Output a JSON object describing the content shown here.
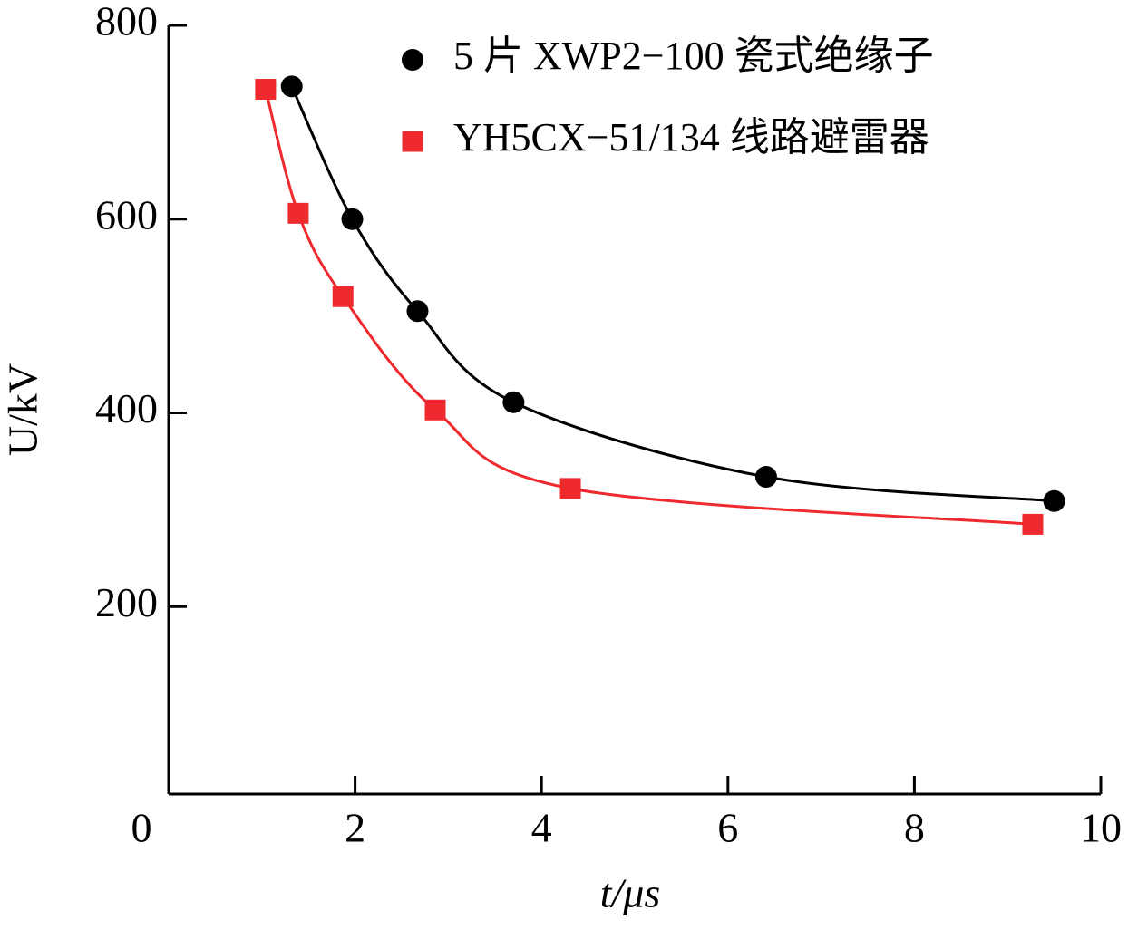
{
  "chart_data": {
    "type": "line",
    "xlabel": "t/μs",
    "ylabel": "U/kV",
    "xlim": [
      0,
      10
    ],
    "xticks": [
      0,
      2,
      4,
      6,
      8,
      10
    ],
    "ylim": [
      0,
      800
    ],
    "yticks": [
      200,
      400,
      600,
      800
    ],
    "legend": "upper right",
    "series": [
      {
        "name": "5 片 XWP2−100 瓷式绝缘子",
        "color": "#000000",
        "marker": "circle",
        "x": [
          1.32,
          1.97,
          2.67,
          3.7,
          6.41,
          9.5
        ],
        "values": [
          737,
          600,
          505,
          411,
          334,
          309
        ]
      },
      {
        "name": "YH5CX−51/134 线路避雷器",
        "color": "#ee2a2e",
        "marker": "square",
        "x": [
          1.04,
          1.39,
          1.87,
          2.86,
          4.31,
          9.27
        ],
        "values": [
          734,
          606,
          520,
          403,
          322,
          285
        ]
      }
    ]
  }
}
